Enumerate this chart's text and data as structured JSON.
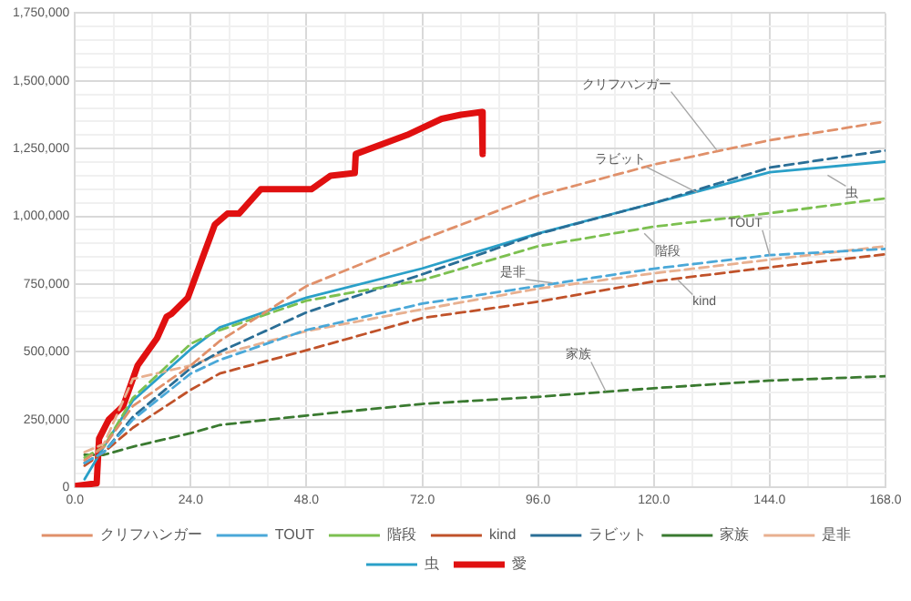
{
  "chart_data": {
    "type": "line",
    "legend": "bottom",
    "grid": true,
    "marker": "none",
    "xlim": [
      0,
      168
    ],
    "xticks": [
      {
        "value": 0,
        "label": "0.0"
      },
      {
        "value": 8,
        "label": null
      },
      {
        "value": 16,
        "label": null
      },
      {
        "value": 24,
        "label": "24.0"
      },
      {
        "value": 32,
        "label": null
      },
      {
        "value": 40,
        "label": null
      },
      {
        "value": 48,
        "label": "48.0"
      },
      {
        "value": 56,
        "label": null
      },
      {
        "value": 64,
        "label": null
      },
      {
        "value": 72,
        "label": "72.0"
      },
      {
        "value": 80,
        "label": null
      },
      {
        "value": 88,
        "label": null
      },
      {
        "value": 96,
        "label": "96.0"
      },
      {
        "value": 104,
        "label": null
      },
      {
        "value": 112,
        "label": null
      },
      {
        "value": 120,
        "label": "120.0"
      },
      {
        "value": 128,
        "label": null
      },
      {
        "value": 136,
        "label": null
      },
      {
        "value": 144,
        "label": "144.0"
      },
      {
        "value": 152,
        "label": null
      },
      {
        "value": 160,
        "label": null
      },
      {
        "value": 168,
        "label": "168.0"
      }
    ],
    "ylim": [
      0,
      1750000
    ],
    "yticks": [
      {
        "value": 0,
        "label": "0"
      },
      {
        "value": 50000,
        "label": null
      },
      {
        "value": 100000,
        "label": null
      },
      {
        "value": 150000,
        "label": null
      },
      {
        "value": 200000,
        "label": null
      },
      {
        "value": 250000,
        "label": "250,000"
      },
      {
        "value": 300000,
        "label": null
      },
      {
        "value": 350000,
        "label": null
      },
      {
        "value": 400000,
        "label": null
      },
      {
        "value": 450000,
        "label": null
      },
      {
        "value": 500000,
        "label": "500,000"
      },
      {
        "value": 550000,
        "label": null
      },
      {
        "value": 600000,
        "label": null
      },
      {
        "value": 650000,
        "label": null
      },
      {
        "value": 700000,
        "label": null
      },
      {
        "value": 750000,
        "label": "750,000"
      },
      {
        "value": 800000,
        "label": null
      },
      {
        "value": 850000,
        "label": null
      },
      {
        "value": 900000,
        "label": null
      },
      {
        "value": 950000,
        "label": null
      },
      {
        "value": 1000000,
        "label": "1,000,000"
      },
      {
        "value": 1050000,
        "label": null
      },
      {
        "value": 1100000,
        "label": null
      },
      {
        "value": 1150000,
        "label": null
      },
      {
        "value": 1200000,
        "label": null
      },
      {
        "value": 1250000,
        "label": "1,250,000"
      },
      {
        "value": 1300000,
        "label": null
      },
      {
        "value": 1350000,
        "label": null
      },
      {
        "value": 1400000,
        "label": null
      },
      {
        "value": 1450000,
        "label": null
      },
      {
        "value": 1500000,
        "label": "1,500,000"
      },
      {
        "value": 1550000,
        "label": null
      },
      {
        "value": 1600000,
        "label": null
      },
      {
        "value": 1650000,
        "label": null
      },
      {
        "value": 1700000,
        "label": null
      },
      {
        "value": 1750000,
        "label": "1,750,000"
      }
    ],
    "x": [
      2,
      6,
      12,
      24,
      30,
      48,
      72,
      96,
      120,
      144,
      168
    ],
    "series": [
      {
        "name": "クリフハンガー",
        "color": "#e0906a",
        "line_style": "dashed",
        "values": [
          100000,
          150000,
          300000,
          450000,
          540000,
          743000,
          915000,
          1077000,
          1191000,
          1281000,
          1350000
        ]
      },
      {
        "name": "TOUT",
        "color": "#4aa8d8",
        "line_style": "dashed",
        "values": [
          90000,
          130000,
          250000,
          420000,
          470000,
          581000,
          678000,
          743000,
          807000,
          857000,
          880000
        ]
      },
      {
        "name": "階段",
        "color": "#7cc050",
        "line_style": "dashed",
        "values": [
          110000,
          150000,
          330000,
          530000,
          580000,
          689000,
          765000,
          890000,
          962000,
          1012000,
          1066000
        ]
      },
      {
        "name": "kind",
        "color": "#c0522a",
        "line_style": "dashed",
        "values": [
          80000,
          130000,
          220000,
          360000,
          420000,
          506000,
          625000,
          685000,
          760000,
          812000,
          860000
        ]
      },
      {
        "name": "ラビット",
        "color": "#2a6e96",
        "line_style": "dashed",
        "values": [
          90000,
          130000,
          260000,
          440000,
          500000,
          646000,
          786000,
          935000,
          1049000,
          1180000,
          1243000
        ]
      },
      {
        "name": "家族",
        "color": "#3a7a30",
        "line_style": "dashed",
        "values": [
          120000,
          120000,
          150000,
          200000,
          230000,
          265000,
          308000,
          334000,
          366000,
          394000,
          410000
        ]
      },
      {
        "name": "是非",
        "color": "#e8b090",
        "line_style": "dashed",
        "values": [
          130000,
          160000,
          400000,
          450000,
          490000,
          577000,
          657000,
          733000,
          790000,
          840000,
          890000
        ]
      },
      {
        "name": "虫",
        "color": "#2aa0c8",
        "line_style": "solid",
        "values": [
          30000,
          150000,
          320000,
          510000,
          590000,
          700000,
          808000,
          937000,
          1049000,
          1163000,
          1202000
        ]
      },
      {
        "name": "愛",
        "color": "#e01010",
        "line_style": "solid",
        "x": [
          0,
          4.5,
          5,
          7,
          10,
          13,
          17,
          19,
          20,
          23.4,
          26.5,
          29,
          31.6,
          34,
          38.5,
          49,
          53,
          58,
          58.2,
          68.8,
          76,
          80,
          84.3,
          84.5
        ],
        "values": [
          5000,
          15000,
          180000,
          250000,
          300000,
          450000,
          550000,
          630000,
          640000,
          700000,
          850000,
          970000,
          1010000,
          1010000,
          1100000,
          1100000,
          1150000,
          1160000,
          1230000,
          1300000,
          1360000,
          1375000,
          1385000,
          1230000
        ]
      }
    ],
    "annotations": [
      {
        "text": "クリフハンガー",
        "x": 133,
        "y": 1245000
      },
      {
        "text": "ラビット",
        "x": 129,
        "y": 1088000
      },
      {
        "text": "虫",
        "x": 156,
        "y": 1152000
      },
      {
        "text": "階段",
        "x": 118,
        "y": 937000
      },
      {
        "text": "TOUT",
        "x": 144,
        "y": 855000
      },
      {
        "text": "是非",
        "x": 99,
        "y": 754000
      },
      {
        "text": "kind",
        "x": 125,
        "y": 765000
      },
      {
        "text": "家族",
        "x": 110,
        "y": 355000
      }
    ]
  }
}
